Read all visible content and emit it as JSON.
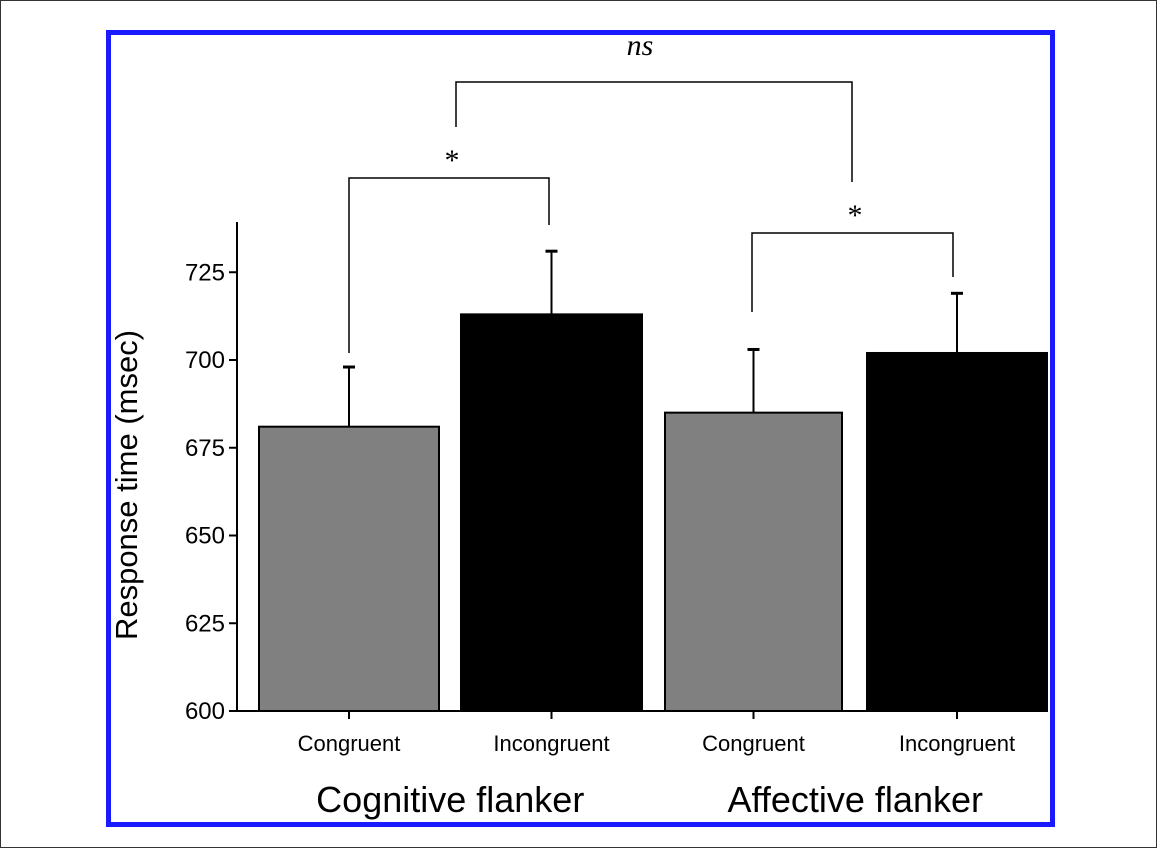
{
  "chart_data": {
    "type": "bar",
    "y_axis_title": "Response time (msec)",
    "ylim": [
      600,
      737
    ],
    "y_ticks": [
      600,
      625,
      650,
      675,
      700,
      725
    ],
    "categories": [
      "Congruent",
      "Incongruent",
      "Congruent",
      "Incongruent"
    ],
    "groups": [
      {
        "label": "Cognitive flanker",
        "bars": [
          {
            "category": "Congruent",
            "value": 681,
            "error": 17,
            "color": "#808080"
          },
          {
            "category": "Incongruent",
            "value": 713,
            "error": 18,
            "color": "#000000"
          }
        ]
      },
      {
        "label": "Affective flanker",
        "bars": [
          {
            "category": "Congruent",
            "value": 685,
            "error": 18,
            "color": "#808080"
          },
          {
            "category": "Incongruent",
            "value": 702,
            "error": 17,
            "color": "#000000"
          }
        ]
      }
    ],
    "significance": [
      {
        "between": [
          0,
          1
        ],
        "label": "*"
      },
      {
        "between": [
          2,
          3
        ],
        "label": "*"
      },
      {
        "between": [
          "group0",
          "group1"
        ],
        "label": "ns"
      }
    ],
    "colors": {
      "border": "#1a1aff",
      "congruent": "#808080",
      "incongruent": "#000000"
    }
  }
}
